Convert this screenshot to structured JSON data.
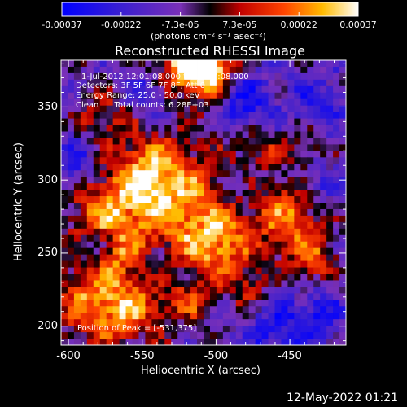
{
  "chart_data": {
    "type": "heatmap",
    "title": "Reconstructed RHESSI Image",
    "xlabel": "Heliocentric X (arcsec)",
    "ylabel": "Heliocentric Y (arcsec)",
    "xlim": [
      -605,
      -412
    ],
    "ylim": [
      187,
      382
    ],
    "x_ticks": [
      "-600",
      "-550",
      "-500",
      "-450"
    ],
    "y_ticks": [
      "200",
      "250",
      "300",
      "350"
    ],
    "x_tick_values": [
      -600,
      -550,
      -500,
      -450
    ],
    "y_tick_values": [
      200,
      250,
      300,
      350
    ],
    "colorbar": {
      "labels": [
        "-0.00037",
        "-0.00022",
        "-7.3e-05",
        "7.3e-05",
        "0.00022",
        "0.00037"
      ],
      "range": [
        -0.00037,
        0.00037
      ],
      "unit_label": "(photons cm⁻² s⁻¹ asec⁻²)"
    },
    "annotations": [
      "1-Jul-2012 12:01:08.000 to 12:07:08.000",
      "Detectors: 3F 5F 6F 7F 8F, Att 0",
      "Energy Range: 25.0 - 50.0 keV",
      "Clean      Total counts: 6.28E+03"
    ],
    "peak_label": "Position of Peak = [-531,375]",
    "peak_position": [
      -531,
      375
    ],
    "grid": false
  },
  "footer": {
    "date": "12-May-2022 01:21"
  },
  "colors": {
    "background": "#000000",
    "text": "#ffffff",
    "colormap": [
      "#0000ff",
      "#5533aa",
      "#8a2be2",
      "#000000",
      "#ff0000",
      "#ff8800",
      "#ffffff"
    ]
  }
}
